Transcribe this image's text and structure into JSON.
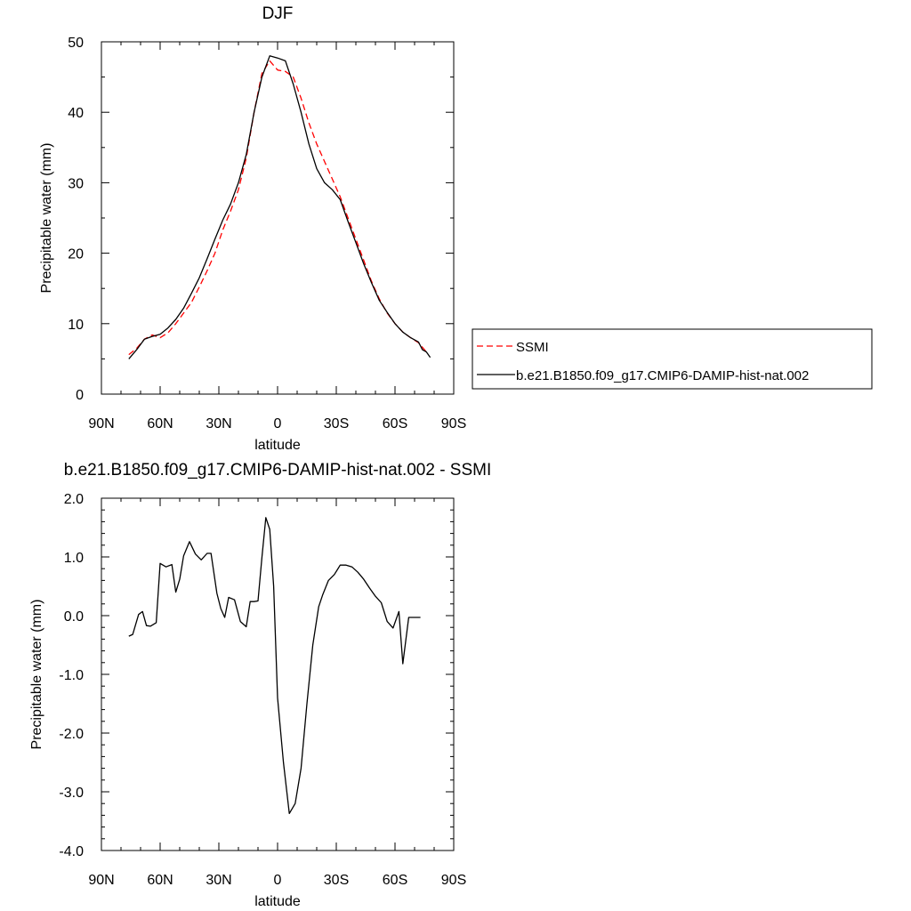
{
  "chart_data": [
    {
      "type": "line",
      "title": "DJF",
      "xlabel": "latitude",
      "ylabel": "Precipitable water (mm)",
      "xlim": [
        -90,
        90
      ],
      "ylim": [
        0,
        50
      ],
      "x_tick_values": [
        -90,
        -60,
        -30,
        0,
        30,
        60,
        90
      ],
      "x_tick_labels": [
        "90N",
        "60N",
        "30N",
        "0",
        "30S",
        "60S",
        "90S"
      ],
      "y_tick_values": [
        0,
        10,
        20,
        30,
        40,
        50
      ],
      "y_tick_labels": [
        "0",
        "10",
        "20",
        "30",
        "40",
        "50"
      ],
      "legend_position": "right",
      "series": [
        {
          "name": "SSMI",
          "color": "#ff0000",
          "dash": "dashed",
          "x": [
            -76,
            -72,
            -68,
            -64,
            -60,
            -56,
            -52,
            -48,
            -44,
            -40,
            -36,
            -32,
            -28,
            -24,
            -20,
            -16,
            -12,
            -8,
            -4,
            0,
            4,
            8,
            12,
            16,
            20,
            24,
            28,
            32,
            36,
            40,
            44,
            48,
            52,
            56,
            60,
            64,
            68,
            72,
            76
          ],
          "y": [
            5.6,
            6.5,
            7.8,
            8.4,
            8.0,
            8.7,
            10.0,
            11.5,
            13.0,
            15.2,
            17.5,
            20.0,
            23.3,
            26.0,
            29.0,
            33.5,
            40.0,
            45.5,
            47.3,
            46.0,
            45.8,
            45.0,
            42.0,
            38.5,
            35.5,
            33.0,
            30.5,
            28.0,
            25.0,
            22.0,
            19.0,
            16.0,
            13.5,
            11.5,
            10.0,
            8.8,
            8.0,
            7.3,
            6.0
          ]
        },
        {
          "name": "b.e21.B1850.f09_g17.CMIP6-DAMIP-hist-nat.002",
          "color": "#000000",
          "dash": "solid",
          "x": [
            -76,
            -72,
            -68,
            -64,
            -60,
            -56,
            -52,
            -48,
            -44,
            -40,
            -36,
            -32,
            -28,
            -24,
            -20,
            -16,
            -12,
            -8,
            -4,
            0,
            4,
            8,
            12,
            16,
            20,
            24,
            28,
            32,
            36,
            40,
            44,
            48,
            52,
            56,
            60,
            64,
            68,
            72,
            74,
            76,
            78
          ],
          "y": [
            5.0,
            6.3,
            7.8,
            8.2,
            8.5,
            9.4,
            10.6,
            12.2,
            14.3,
            16.5,
            19.2,
            22.0,
            24.7,
            27.0,
            30.0,
            34.0,
            40.0,
            45.0,
            48.0,
            47.7,
            47.3,
            44.0,
            40.0,
            35.5,
            32.0,
            30.0,
            29.0,
            27.6,
            24.5,
            21.5,
            18.5,
            15.8,
            13.3,
            11.6,
            10.0,
            8.8,
            8.0,
            7.4,
            6.3,
            6.0,
            5.2
          ]
        }
      ]
    },
    {
      "type": "line",
      "title": "b.e21.B1850.f09_g17.CMIP6-DAMIP-hist-nat.002 - SSMI",
      "xlabel": "latitude",
      "ylabel": "Precipitable water (mm)",
      "xlim": [
        -90,
        90
      ],
      "ylim": [
        -4.0,
        2.0
      ],
      "x_tick_values": [
        -90,
        -60,
        -30,
        0,
        30,
        60,
        90
      ],
      "x_tick_labels": [
        "90N",
        "60N",
        "30N",
        "0",
        "30S",
        "60S",
        "90S"
      ],
      "y_tick_values": [
        -4.0,
        -3.0,
        -2.0,
        -1.0,
        0.0,
        1.0,
        2.0
      ],
      "y_tick_labels": [
        "-4.0",
        "-3.0",
        "-2.0",
        "-1.0",
        "0.0",
        "1.0",
        "2.0"
      ],
      "series": [
        {
          "name": "",
          "color": "#000000",
          "dash": "solid",
          "x": [
            -76,
            -74,
            -71,
            -69,
            -67,
            -65,
            -62,
            -60,
            -57,
            -54,
            -52,
            -50,
            -48,
            -45,
            -42,
            -39,
            -36,
            -34,
            -31,
            -29,
            -27,
            -25,
            -22,
            -19,
            -16,
            -14,
            -12,
            -10,
            -8,
            -6,
            -4,
            -2,
            0,
            3,
            6,
            9,
            12,
            15,
            18,
            21,
            23,
            26,
            29,
            32,
            35,
            38,
            41,
            44,
            47,
            50,
            53,
            56,
            59,
            62,
            64,
            67,
            69,
            71,
            73
          ],
          "y": [
            -0.35,
            -0.32,
            0.02,
            0.07,
            -0.17,
            -0.18,
            -0.12,
            0.89,
            0.83,
            0.87,
            0.4,
            0.62,
            1.02,
            1.26,
            1.05,
            0.95,
            1.06,
            1.06,
            0.38,
            0.12,
            -0.03,
            0.31,
            0.27,
            -0.1,
            -0.19,
            0.24,
            0.24,
            0.25,
            0.99,
            1.67,
            1.47,
            0.5,
            -1.4,
            -2.5,
            -3.37,
            -3.2,
            -2.6,
            -1.5,
            -0.5,
            0.15,
            0.35,
            0.6,
            0.7,
            0.86,
            0.86,
            0.83,
            0.74,
            0.62,
            0.47,
            0.33,
            0.22,
            -0.1,
            -0.21,
            0.07,
            -0.82,
            -0.03,
            -0.03,
            -0.03,
            -0.03
          ]
        }
      ]
    }
  ]
}
